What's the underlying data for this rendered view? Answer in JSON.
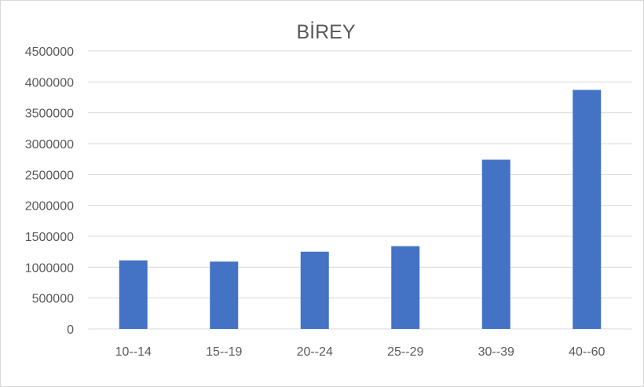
{
  "colors": {
    "bar": "#4472c4",
    "gridline": "#d9d9d9",
    "text": "#595959",
    "border": "#d9d9d9"
  },
  "chart_data": {
    "type": "bar",
    "title": "BİREY",
    "xlabel": "",
    "ylabel": "",
    "categories": [
      "10--14",
      "15--19",
      "20--24",
      "25--29",
      "30--39",
      "40--60"
    ],
    "values": [
      1110000,
      1090000,
      1250000,
      1340000,
      2740000,
      3870000
    ],
    "ylim": [
      0,
      4500000
    ],
    "yticks": [
      "0",
      "500000",
      "1000000",
      "1500000",
      "2000000",
      "2500000",
      "3000000",
      "3500000",
      "4000000",
      "4500000"
    ],
    "grid": true,
    "legend": "none"
  }
}
